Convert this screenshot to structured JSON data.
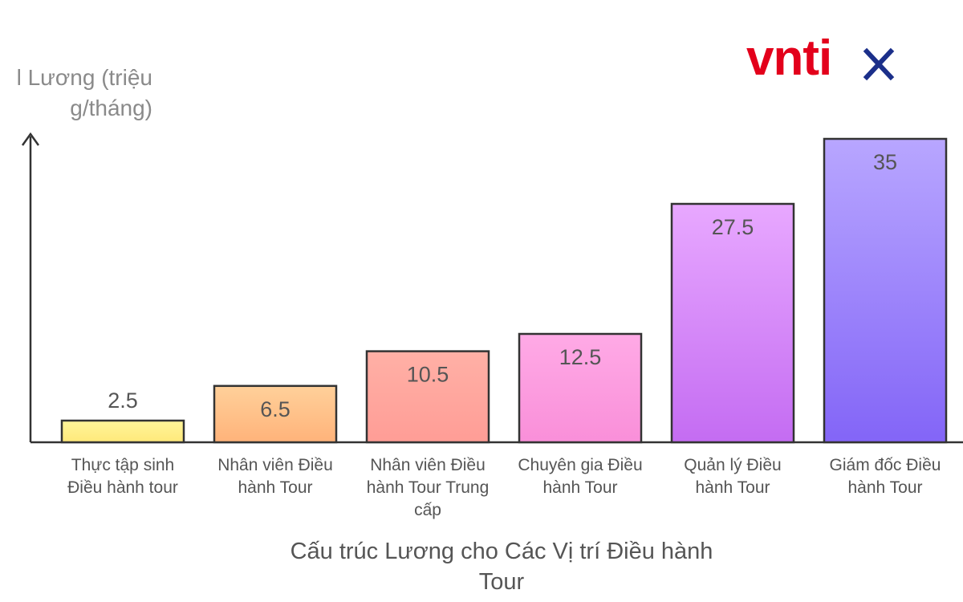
{
  "brand": {
    "logo_text": "vntix",
    "logo_red": "#e3001b",
    "logo_blue": "#1b2f8a"
  },
  "chart_data": {
    "type": "bar",
    "title": "Cấu trúc Lương cho Các Vị trí Điều hành Tour",
    "xlabel": "Cấu trúc Lương cho Các Vị trí Điều hành Tour",
    "ylabel": "Mức Lương (triệu đồng/tháng)",
    "ylabel_visible": "l Lương (triệu g/tháng)",
    "categories": [
      "Thực tập sinh Điều hành tour",
      "Nhân viên Điều hành Tour",
      "Nhân viên Điều hành Tour Trung cấp",
      "Chuyên gia Điều hành Tour",
      "Quản lý Điều hành Tour",
      "Giám đốc Điều hành Tour"
    ],
    "values": [
      2.5,
      6.5,
      10.5,
      12.5,
      27.5,
      35
    ],
    "data_labels": [
      "2.5",
      "6.5",
      "10.5",
      "12.5",
      "27.5",
      "35"
    ],
    "bar_colors": [
      [
        "#fff59a",
        "#ffe97a"
      ],
      [
        "#ffd09a",
        "#ffb37a"
      ],
      [
        "#ffb0a6",
        "#ff9d96"
      ],
      [
        "#ffaae6",
        "#f98fd9"
      ],
      [
        "#e8a8ff",
        "#c46cf2"
      ],
      [
        "#b8a6ff",
        "#8365f7"
      ]
    ],
    "grid": false,
    "legend": "none"
  }
}
